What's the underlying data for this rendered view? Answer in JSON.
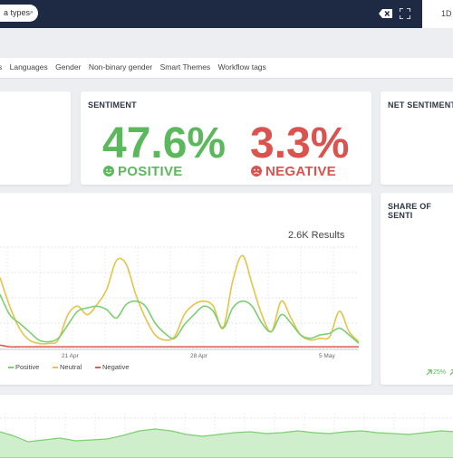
{
  "topbar": {
    "filter_pill_label": "a types",
    "clear_icon": "backspace-x-icon",
    "expand_icon": "fullscreen-icon",
    "range_label": "1D"
  },
  "tags": [
    "s",
    "Languages",
    "Gender",
    "Non-binary gender",
    "Smart Themes",
    "Workflow tags"
  ],
  "sentiment": {
    "title": "SENTIMENT",
    "positive_value": "47.6%",
    "positive_label": "POSITIVE",
    "negative_value": "3.3%",
    "negative_label": "NEGATIVE",
    "colors": {
      "positive": "#5cb85c",
      "negative": "#d9534f"
    }
  },
  "net_sentiment": {
    "title": "NET SENTIMENT"
  },
  "trend": {
    "results": "2.6K Results",
    "x_ticks": [
      "21 Apr",
      "28 Apr",
      "5 May"
    ],
    "legend": [
      "Positive",
      "Neutral",
      "Negative"
    ]
  },
  "share": {
    "title": "SHARE OF SENTI",
    "positive_pct": "25%"
  },
  "chart_data": {
    "type": "line",
    "x": [
      1,
      2,
      3,
      4,
      5,
      6,
      7,
      8,
      9,
      10,
      11,
      12,
      13,
      14,
      15,
      16,
      17,
      18,
      19,
      20,
      21,
      22,
      23,
      24,
      25,
      26,
      27,
      28,
      29,
      30,
      31,
      32,
      33,
      34,
      35,
      36,
      37,
      38
    ],
    "series": [
      {
        "name": "Positive",
        "color": "#7ccf72",
        "values": [
          32,
          20,
          15,
          10,
          5,
          4,
          6,
          14,
          22,
          24,
          25,
          23,
          18,
          26,
          28,
          25,
          15,
          9,
          6,
          14,
          20,
          25,
          22,
          12,
          24,
          28,
          25,
          15,
          10,
          20,
          15,
          8,
          6,
          8,
          9,
          12,
          8,
          3
        ]
      },
      {
        "name": "Neutral",
        "color": "#e8c34a",
        "values": [
          42,
          25,
          12,
          5,
          3,
          3,
          5,
          20,
          25,
          20,
          26,
          35,
          52,
          50,
          32,
          18,
          8,
          5,
          7,
          20,
          26,
          28,
          25,
          12,
          40,
          55,
          38,
          20,
          10,
          28,
          18,
          8,
          5,
          6,
          7,
          22,
          10,
          4
        ]
      },
      {
        "name": "Negative",
        "color": "#e05a4e",
        "values": [
          2,
          1,
          1,
          1,
          1,
          1,
          1,
          1,
          1,
          1,
          1,
          1,
          1,
          1,
          1,
          1,
          1,
          1,
          1,
          1,
          1,
          1,
          1,
          1,
          1,
          1,
          1,
          1,
          1,
          1,
          1,
          1,
          1,
          1,
          1,
          1,
          1,
          1
        ]
      }
    ],
    "x_tick_labels": [
      "21 Apr",
      "28 Apr",
      "5 May"
    ],
    "legend_placement": "bottom-left",
    "grid": true
  }
}
